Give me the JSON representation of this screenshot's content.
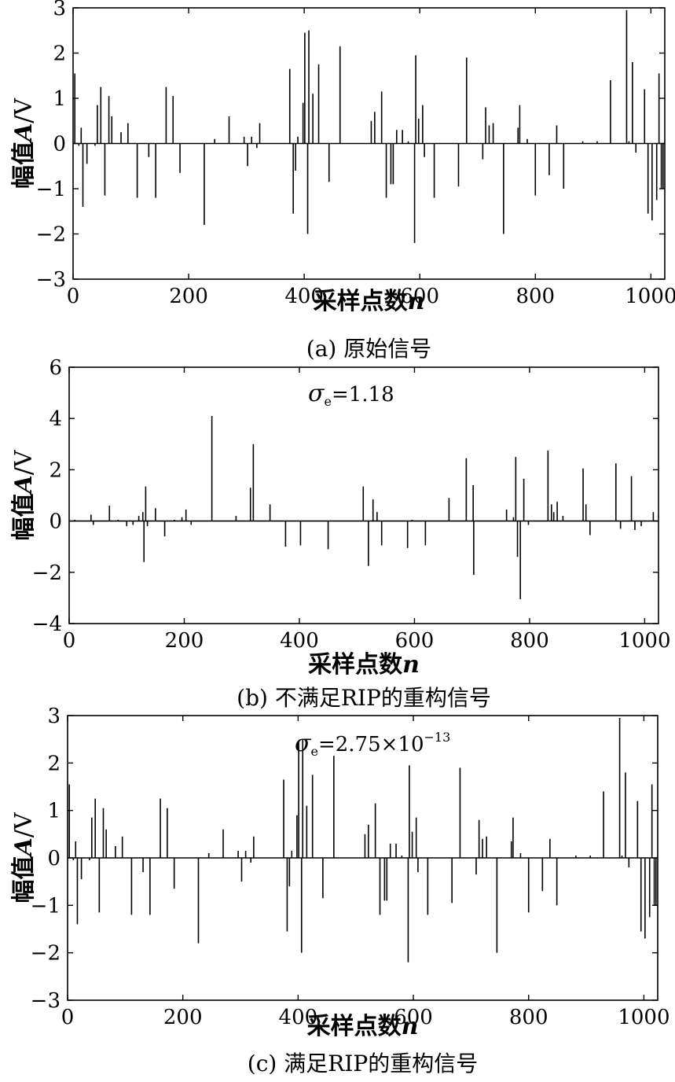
{
  "chart_data": [
    {
      "id": "a",
      "type": "stem",
      "caption": "(a) 原始信号",
      "xlabel": "采样点数",
      "xlabel_var": "n",
      "ylabel": "幅值",
      "ylabel_var": "A",
      "ylabel_unit": "/V",
      "xlim": [
        0,
        1024
      ],
      "ylim": [
        -3,
        3
      ],
      "xticks": [
        0,
        200,
        400,
        600,
        800,
        1000
      ],
      "yticks": [
        -3,
        -2,
        -1,
        0,
        1,
        2,
        3
      ],
      "annotation": null,
      "points": [
        [
          3,
          1.55
        ],
        [
          10,
          -0.05
        ],
        [
          14,
          0.35
        ],
        [
          17,
          -1.4
        ],
        [
          24,
          -0.45
        ],
        [
          38,
          -0.05
        ],
        [
          42,
          0.85
        ],
        [
          48,
          1.25
        ],
        [
          55,
          -1.15
        ],
        [
          62,
          1.05
        ],
        [
          67,
          0.6
        ],
        [
          83,
          0.25
        ],
        [
          95,
          0.45
        ],
        [
          111,
          -1.2
        ],
        [
          131,
          -0.3
        ],
        [
          143,
          -1.2
        ],
        [
          161,
          1.25
        ],
        [
          173,
          1.05
        ],
        [
          185,
          -0.65
        ],
        [
          227,
          -1.8
        ],
        [
          245,
          0.1
        ],
        [
          270,
          0.6
        ],
        [
          296,
          0.15
        ],
        [
          302,
          -0.5
        ],
        [
          309,
          0.15
        ],
        [
          318,
          -0.1
        ],
        [
          323,
          0.45
        ],
        [
          375,
          1.65
        ],
        [
          381,
          -1.55
        ],
        [
          385,
          -0.6
        ],
        [
          389,
          0.15
        ],
        [
          398,
          0.9
        ],
        [
          401,
          2.45
        ],
        [
          406,
          -2.0
        ],
        [
          408,
          2.5
        ],
        [
          415,
          1.1
        ],
        [
          425,
          1.75
        ],
        [
          443,
          -0.85
        ],
        [
          462,
          2.15
        ],
        [
          516,
          0.5
        ],
        [
          522,
          0.7
        ],
        [
          534,
          1.15
        ],
        [
          542,
          -1.2
        ],
        [
          550,
          -0.9
        ],
        [
          554,
          -0.9
        ],
        [
          560,
          0.3
        ],
        [
          570,
          0.3
        ],
        [
          580,
          0.05
        ],
        [
          591,
          -2.2
        ],
        [
          593,
          1.95
        ],
        [
          598,
          0.55
        ],
        [
          605,
          0.85
        ],
        [
          608,
          -0.3
        ],
        [
          625,
          -1.2
        ],
        [
          667,
          -0.95
        ],
        [
          681,
          1.9
        ],
        [
          709,
          -0.35
        ],
        [
          714,
          0.8
        ],
        [
          720,
          0.4
        ],
        [
          727,
          0.45
        ],
        [
          745,
          -2.0
        ],
        [
          770,
          0.35
        ],
        [
          773,
          0.85
        ],
        [
          786,
          0.1
        ],
        [
          800,
          -1.15
        ],
        [
          824,
          -0.7
        ],
        [
          837,
          0.4
        ],
        [
          849,
          -1.0
        ],
        [
          882,
          0.05
        ],
        [
          907,
          0.05
        ],
        [
          930,
          1.4
        ],
        [
          958,
          2.95
        ],
        [
          962,
          0.05
        ],
        [
          968,
          1.8
        ],
        [
          974,
          -0.2
        ],
        [
          989,
          1.2
        ],
        [
          995,
          -1.55
        ],
        [
          1002,
          -1.7
        ],
        [
          1010,
          -1.25
        ],
        [
          1014,
          1.55
        ],
        [
          1018,
          -1.0
        ],
        [
          1021,
          -1.0
        ]
      ]
    },
    {
      "id": "b",
      "type": "stem",
      "caption": "(b) 不满足RIP的重构信号",
      "xlabel": "采样点数",
      "xlabel_var": "n",
      "ylabel": "幅值",
      "ylabel_var": "A",
      "ylabel_unit": "/V",
      "xlim": [
        0,
        1024
      ],
      "ylim": [
        -4,
        6
      ],
      "xticks": [
        0,
        200,
        400,
        600,
        800,
        1000
      ],
      "yticks": [
        -4,
        -2,
        0,
        2,
        4,
        6
      ],
      "annotation": {
        "symbol": "σ",
        "subscript": "e",
        "text": "=1.18",
        "exp": null
      },
      "points": [
        [
          10,
          0.05
        ],
        [
          38,
          0.25
        ],
        [
          42,
          -0.15
        ],
        [
          70,
          0.6
        ],
        [
          85,
          0.05
        ],
        [
          100,
          -0.2
        ],
        [
          111,
          -0.15
        ],
        [
          121,
          0.2
        ],
        [
          128,
          0.35
        ],
        [
          130,
          -1.6
        ],
        [
          133,
          1.35
        ],
        [
          136,
          -0.2
        ],
        [
          150,
          0.5
        ],
        [
          166,
          -0.6
        ],
        [
          183,
          0.05
        ],
        [
          196,
          0.15
        ],
        [
          203,
          0.45
        ],
        [
          212,
          -0.15
        ],
        [
          248,
          4.1
        ],
        [
          290,
          0.2
        ],
        [
          315,
          1.3
        ],
        [
          320,
          3.0
        ],
        [
          349,
          0.65
        ],
        [
          376,
          -1.0
        ],
        [
          402,
          -0.95
        ],
        [
          450,
          -1.1
        ],
        [
          511,
          1.35
        ],
        [
          520,
          -1.75
        ],
        [
          528,
          0.85
        ],
        [
          535,
          0.35
        ],
        [
          543,
          -0.95
        ],
        [
          588,
          -1.05
        ],
        [
          596,
          0.05
        ],
        [
          619,
          -0.95
        ],
        [
          660,
          0.9
        ],
        [
          690,
          2.45
        ],
        [
          702,
          1.4
        ],
        [
          703,
          -2.1
        ],
        [
          760,
          0.45
        ],
        [
          772,
          0.15
        ],
        [
          776,
          2.5
        ],
        [
          779,
          -1.4
        ],
        [
          784,
          -3.05
        ],
        [
          790,
          1.65
        ],
        [
          798,
          -0.15
        ],
        [
          832,
          2.75
        ],
        [
          838,
          0.65
        ],
        [
          842,
          0.35
        ],
        [
          848,
          0.75
        ],
        [
          858,
          0.2
        ],
        [
          893,
          2.05
        ],
        [
          898,
          0.65
        ],
        [
          905,
          -0.55
        ],
        [
          950,
          2.25
        ],
        [
          958,
          -0.3
        ],
        [
          977,
          1.75
        ],
        [
          983,
          -0.35
        ],
        [
          994,
          -0.2
        ],
        [
          1015,
          0.35
        ]
      ]
    },
    {
      "id": "c",
      "type": "stem",
      "caption": "(c) 满足RIP的重构信号",
      "xlabel": "采样点数",
      "xlabel_var": "n",
      "ylabel": "幅值",
      "ylabel_var": "A",
      "ylabel_unit": "/V",
      "xlim": [
        0,
        1024
      ],
      "ylim": [
        -3,
        3
      ],
      "xticks": [
        0,
        200,
        400,
        600,
        800,
        1000
      ],
      "yticks": [
        -3,
        -2,
        -1,
        0,
        1,
        2,
        3
      ],
      "annotation": {
        "symbol": "σ",
        "subscript": "e",
        "text": "=2.75×10",
        "exp": "−13"
      },
      "points": [
        [
          3,
          1.55
        ],
        [
          10,
          -0.05
        ],
        [
          14,
          0.35
        ],
        [
          17,
          -1.4
        ],
        [
          24,
          -0.45
        ],
        [
          38,
          -0.05
        ],
        [
          42,
          0.85
        ],
        [
          48,
          1.25
        ],
        [
          55,
          -1.15
        ],
        [
          62,
          1.05
        ],
        [
          67,
          0.6
        ],
        [
          83,
          0.25
        ],
        [
          95,
          0.45
        ],
        [
          111,
          -1.2
        ],
        [
          131,
          -0.3
        ],
        [
          143,
          -1.2
        ],
        [
          161,
          1.25
        ],
        [
          173,
          1.05
        ],
        [
          185,
          -0.65
        ],
        [
          227,
          -1.8
        ],
        [
          245,
          0.1
        ],
        [
          270,
          0.6
        ],
        [
          296,
          0.15
        ],
        [
          302,
          -0.5
        ],
        [
          309,
          0.15
        ],
        [
          318,
          -0.1
        ],
        [
          323,
          0.45
        ],
        [
          375,
          1.65
        ],
        [
          381,
          -1.55
        ],
        [
          385,
          -0.6
        ],
        [
          389,
          0.15
        ],
        [
          398,
          0.9
        ],
        [
          401,
          2.45
        ],
        [
          406,
          -2.0
        ],
        [
          408,
          2.5
        ],
        [
          415,
          1.1
        ],
        [
          425,
          1.75
        ],
        [
          443,
          -0.85
        ],
        [
          462,
          2.15
        ],
        [
          516,
          0.5
        ],
        [
          522,
          0.7
        ],
        [
          534,
          1.15
        ],
        [
          542,
          -1.2
        ],
        [
          550,
          -0.9
        ],
        [
          554,
          -0.9
        ],
        [
          560,
          0.3
        ],
        [
          570,
          0.3
        ],
        [
          580,
          0.05
        ],
        [
          591,
          -2.2
        ],
        [
          593,
          1.95
        ],
        [
          598,
          0.55
        ],
        [
          605,
          0.85
        ],
        [
          608,
          -0.3
        ],
        [
          625,
          -1.2
        ],
        [
          667,
          -0.95
        ],
        [
          681,
          1.9
        ],
        [
          709,
          -0.35
        ],
        [
          714,
          0.8
        ],
        [
          720,
          0.4
        ],
        [
          727,
          0.45
        ],
        [
          745,
          -2.0
        ],
        [
          770,
          0.35
        ],
        [
          773,
          0.85
        ],
        [
          786,
          0.1
        ],
        [
          800,
          -1.15
        ],
        [
          824,
          -0.7
        ],
        [
          837,
          0.4
        ],
        [
          849,
          -1.0
        ],
        [
          882,
          0.05
        ],
        [
          907,
          0.05
        ],
        [
          930,
          1.4
        ],
        [
          958,
          2.95
        ],
        [
          962,
          0.05
        ],
        [
          968,
          1.8
        ],
        [
          974,
          -0.2
        ],
        [
          989,
          1.2
        ],
        [
          995,
          -1.55
        ],
        [
          1002,
          -1.7
        ],
        [
          1010,
          -1.25
        ],
        [
          1014,
          1.55
        ],
        [
          1018,
          -1.0
        ],
        [
          1021,
          -1.0
        ]
      ]
    }
  ]
}
